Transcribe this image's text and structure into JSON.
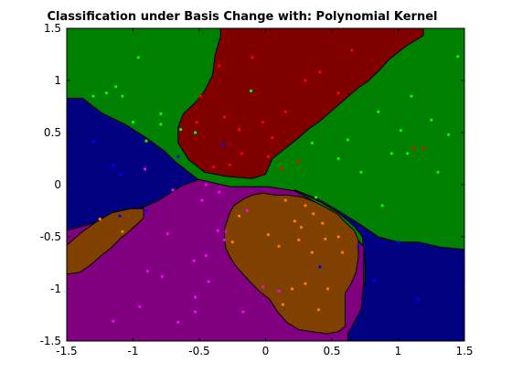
{
  "chart_data": {
    "type": "scatter",
    "title": "Classification under Basis Change with: Polynomial Kernel",
    "xlabel": "",
    "ylabel": "",
    "xlim": [
      -1.5,
      1.5
    ],
    "ylim": [
      -1.5,
      1.5
    ],
    "xticks": [
      -1.5,
      -1,
      -0.5,
      0,
      0.5,
      1,
      1.5
    ],
    "xtick_labels": [
      "-1.5",
      "-1",
      "-0.5",
      "0",
      "0.5",
      "1",
      "1.5"
    ],
    "yticks": [
      -1.5,
      -1,
      -0.5,
      0,
      0.5,
      1,
      1.5
    ],
    "ytick_labels": [
      "-1.5",
      "-1",
      "-0.5",
      "0",
      "0.5",
      "1",
      "1.5"
    ],
    "grid": false,
    "background_color": "#008000",
    "regions": [
      {
        "class": "red",
        "color": "#800000",
        "polygon": [
          [
            -0.34,
            1.5
          ],
          [
            1.19,
            1.5
          ],
          [
            1.19,
            1.43
          ],
          [
            1.06,
            1.33
          ],
          [
            0.93,
            1.2
          ],
          [
            0.86,
            1.1
          ],
          [
            0.77,
            0.99
          ],
          [
            0.7,
            0.93
          ],
          [
            0.6,
            0.82
          ],
          [
            0.49,
            0.7
          ],
          [
            0.4,
            0.6
          ],
          [
            0.33,
            0.54
          ],
          [
            0.25,
            0.45
          ],
          [
            0.15,
            0.35
          ],
          [
            0.05,
            0.25
          ],
          [
            0,
            0.1
          ],
          [
            -0.1,
            0.06
          ],
          [
            -0.3,
            0.08
          ],
          [
            -0.46,
            0.12
          ],
          [
            -0.58,
            0.24
          ],
          [
            -0.66,
            0.4
          ],
          [
            -0.66,
            0.55
          ],
          [
            -0.62,
            0.68
          ],
          [
            -0.52,
            0.8
          ],
          [
            -0.46,
            0.9
          ],
          [
            -0.4,
            1.05
          ],
          [
            -0.38,
            1.25
          ],
          [
            -0.34,
            1.42
          ]
        ]
      },
      {
        "class": "blue",
        "color": "#000080",
        "polygon": [
          [
            -1.5,
            0.83
          ],
          [
            -1.38,
            0.83
          ],
          [
            -1.24,
            0.69
          ],
          [
            -1.06,
            0.58
          ],
          [
            -0.9,
            0.45
          ],
          [
            -0.76,
            0.32
          ],
          [
            -0.68,
            0.22
          ],
          [
            -0.6,
            0.14
          ],
          [
            -0.5,
            0.04
          ],
          [
            -0.4,
            0.0
          ],
          [
            -0.6,
            -0.07
          ],
          [
            -0.8,
            -0.15
          ],
          [
            -1.0,
            -0.25
          ],
          [
            -1.12,
            -0.3
          ],
          [
            -1.26,
            -0.36
          ],
          [
            -1.4,
            -0.4
          ],
          [
            -1.5,
            -0.45
          ]
        ]
      },
      {
        "class": "blue",
        "color": "#000080",
        "polygon": [
          [
            0.22,
            -0.05
          ],
          [
            0.4,
            -0.14
          ],
          [
            0.55,
            -0.25
          ],
          [
            0.7,
            -0.37
          ],
          [
            0.85,
            -0.5
          ],
          [
            1.0,
            -0.55
          ],
          [
            1.15,
            -0.55
          ],
          [
            1.32,
            -0.6
          ],
          [
            1.5,
            -0.62
          ],
          [
            1.5,
            -1.5
          ],
          [
            0.62,
            -1.5
          ],
          [
            0.62,
            -1.42
          ],
          [
            0.69,
            -1.25
          ],
          [
            0.72,
            -1.08
          ],
          [
            0.75,
            -0.92
          ],
          [
            0.75,
            -0.78
          ],
          [
            0.74,
            -0.65
          ],
          [
            0.73,
            -0.5
          ],
          [
            0.67,
            -0.4
          ],
          [
            0.55,
            -0.27
          ],
          [
            0.42,
            -0.17
          ],
          [
            0.3,
            -0.1
          ]
        ]
      },
      {
        "class": "purple",
        "color": "#800080",
        "polygon": [
          [
            -1.5,
            -1.5
          ],
          [
            0.62,
            -1.5
          ],
          [
            0.62,
            -1.43
          ],
          [
            0.72,
            -1.2
          ],
          [
            0.74,
            -0.92
          ],
          [
            0.74,
            -0.6
          ],
          [
            0.62,
            -0.4
          ],
          [
            0.5,
            -0.28
          ],
          [
            0.38,
            -0.17
          ],
          [
            0.22,
            -0.06
          ],
          [
            0.02,
            -0.02
          ],
          [
            -0.26,
            -0.02
          ],
          [
            -0.5,
            0.05
          ],
          [
            -0.63,
            -0.01
          ],
          [
            -0.82,
            -0.16
          ],
          [
            -1.05,
            -0.29
          ],
          [
            -1.3,
            -0.37
          ],
          [
            -1.5,
            -0.44
          ]
        ]
      },
      {
        "class": "orange",
        "color": "#804000",
        "polygon": [
          [
            -1.5,
            -0.58
          ],
          [
            -1.38,
            -0.45
          ],
          [
            -1.28,
            -0.36
          ],
          [
            -1.16,
            -0.27
          ],
          [
            -1.02,
            -0.23
          ],
          [
            -0.92,
            -0.23
          ],
          [
            -0.92,
            -0.32
          ],
          [
            -0.97,
            -0.38
          ],
          [
            -1.03,
            -0.45
          ],
          [
            -1.1,
            -0.52
          ],
          [
            -1.16,
            -0.6
          ],
          [
            -1.24,
            -0.68
          ],
          [
            -1.32,
            -0.77
          ],
          [
            -1.4,
            -0.84
          ],
          [
            -1.5,
            -0.86
          ]
        ]
      },
      {
        "class": "orange",
        "color": "#804000",
        "polygon": [
          [
            -0.27,
            -0.27
          ],
          [
            -0.24,
            -0.2
          ],
          [
            -0.17,
            -0.14
          ],
          [
            -0.1,
            -0.1
          ],
          [
            -0.02,
            -0.08
          ],
          [
            0.07,
            -0.1
          ],
          [
            0.17,
            -0.1
          ],
          [
            0.28,
            -0.12
          ],
          [
            0.38,
            -0.17
          ],
          [
            0.47,
            -0.23
          ],
          [
            0.54,
            -0.28
          ],
          [
            0.6,
            -0.36
          ],
          [
            0.67,
            -0.44
          ],
          [
            0.7,
            -0.53
          ],
          [
            0.7,
            -0.7
          ],
          [
            0.68,
            -0.85
          ],
          [
            0.64,
            -0.96
          ],
          [
            0.6,
            -1.04
          ],
          [
            0.6,
            -1.15
          ],
          [
            0.6,
            -1.26
          ],
          [
            0.6,
            -1.36
          ],
          [
            0.55,
            -1.41
          ],
          [
            0.46,
            -1.43
          ],
          [
            0.35,
            -1.41
          ],
          [
            0.25,
            -1.39
          ],
          [
            0.16,
            -1.32
          ],
          [
            0.09,
            -1.22
          ],
          [
            0.03,
            -1.1
          ],
          [
            -0.04,
            -1.03
          ],
          [
            -0.11,
            -0.94
          ],
          [
            -0.17,
            -0.86
          ],
          [
            -0.23,
            -0.77
          ],
          [
            -0.27,
            -0.69
          ],
          [
            -0.3,
            -0.61
          ],
          [
            -0.31,
            -0.52
          ],
          [
            -0.31,
            -0.42
          ]
        ]
      }
    ],
    "series": [
      {
        "class": "red",
        "color": "#ff0000",
        "points": [
          [
            -0.49,
            0.85
          ],
          [
            -0.35,
            1.14
          ],
          [
            -0.31,
            0.65
          ],
          [
            -0.2,
            0.53
          ],
          [
            -0.1,
            1.22
          ],
          [
            0.05,
            0.45
          ],
          [
            0.15,
            0.7
          ],
          [
            0.25,
            0.22
          ],
          [
            0.3,
            1.0
          ],
          [
            0.41,
            1.08
          ],
          [
            -0.52,
            0.6
          ],
          [
            -0.18,
            0.3
          ],
          [
            0.02,
            0.27
          ],
          [
            -0.27,
            0.19
          ],
          [
            0.12,
            0.15
          ],
          [
            0.55,
            0.88
          ],
          [
            0.65,
            1.29
          ],
          [
            1.12,
            0.35
          ],
          [
            1.19,
            0.35
          ],
          [
            -0.39,
            0.17
          ],
          [
            -0.02,
            0.6
          ]
        ]
      },
      {
        "class": "green",
        "color": "#00ff00",
        "points": [
          [
            -1.2,
            0.88
          ],
          [
            -1.13,
            0.94
          ],
          [
            -1.08,
            0.85
          ],
          [
            -0.96,
            1.22
          ],
          [
            -0.79,
            0.68
          ],
          [
            -0.64,
            0.53
          ],
          [
            -0.79,
            0.58
          ],
          [
            -0.9,
            0.42
          ],
          [
            -1.0,
            0.6
          ],
          [
            -1.3,
            0.85
          ],
          [
            0.55,
            0.25
          ],
          [
            0.85,
            0.7
          ],
          [
            0.95,
            0.3
          ],
          [
            1.07,
            0.3
          ],
          [
            1.25,
            0.62
          ],
          [
            1.38,
            0.48
          ],
          [
            1.45,
            1.23
          ],
          [
            0.72,
            0.12
          ],
          [
            1.02,
            0.52
          ],
          [
            0.88,
            -0.2
          ],
          [
            0.62,
            0.43
          ],
          [
            1.1,
            0.85
          ],
          [
            0.35,
            0.4
          ],
          [
            -0.53,
            0.5
          ],
          [
            -0.11,
            0.9
          ],
          [
            0.38,
            -0.12
          ],
          [
            1.3,
            0.12
          ]
        ]
      },
      {
        "class": "blue",
        "color": "#0000ff",
        "points": [
          [
            -1.15,
            0.18
          ],
          [
            -1.3,
            0.41
          ],
          [
            -1.09,
            0.1
          ],
          [
            -0.9,
            -0.25
          ],
          [
            -0.66,
            0.27
          ],
          [
            -0.32,
            0.38
          ],
          [
            -1.1,
            -0.3
          ],
          [
            0.82,
            -0.92
          ],
          [
            1.15,
            -1.1
          ],
          [
            0.41,
            -0.79
          ],
          [
            1.0,
            -0.55
          ],
          [
            0.7,
            -0.6
          ]
        ]
      },
      {
        "class": "purple",
        "color": "#ff00ff",
        "points": [
          [
            -1.15,
            -1.31
          ],
          [
            -0.95,
            -1.17
          ],
          [
            -0.89,
            -0.83
          ],
          [
            -0.78,
            -0.88
          ],
          [
            -0.54,
            -0.73
          ],
          [
            -0.43,
            -0.93
          ],
          [
            -0.36,
            -0.44
          ],
          [
            -0.3,
            -0.45
          ],
          [
            -0.45,
            0.0
          ],
          [
            -0.48,
            -0.15
          ],
          [
            -0.7,
            -0.05
          ],
          [
            -0.53,
            -1.08
          ],
          [
            -0.66,
            -1.32
          ],
          [
            -0.53,
            -1.22
          ],
          [
            -0.17,
            -1.22
          ],
          [
            -0.02,
            -0.98
          ],
          [
            0.1,
            -1.02
          ],
          [
            -0.31,
            -0.53
          ],
          [
            -0.45,
            -0.68
          ],
          [
            -0.91,
            0.15
          ],
          [
            -0.74,
            -0.47
          ],
          [
            -0.14,
            -0.25
          ],
          [
            -0.35,
            -0.07
          ]
        ]
      },
      {
        "class": "orange",
        "color": "#ff8000",
        "points": [
          [
            -1.25,
            -0.33
          ],
          [
            -1.08,
            -0.45
          ],
          [
            0.15,
            -0.15
          ],
          [
            0.22,
            -0.35
          ],
          [
            0.27,
            -0.41
          ],
          [
            0.36,
            -0.28
          ],
          [
            0.43,
            -0.37
          ],
          [
            0.45,
            -0.52
          ],
          [
            0.55,
            -0.5
          ],
          [
            0.58,
            -0.65
          ],
          [
            0.1,
            -0.59
          ],
          [
            0.25,
            -0.53
          ],
          [
            0.35,
            -0.65
          ],
          [
            0.2,
            -1.0
          ],
          [
            0.3,
            -0.95
          ],
          [
            0.4,
            -1.2
          ],
          [
            0.47,
            -1.0
          ],
          [
            0.02,
            -0.48
          ],
          [
            0.3,
            -0.2
          ],
          [
            -0.25,
            -0.55
          ],
          [
            0.13,
            -1.15
          ],
          [
            -0.2,
            -0.3
          ]
        ]
      }
    ]
  }
}
